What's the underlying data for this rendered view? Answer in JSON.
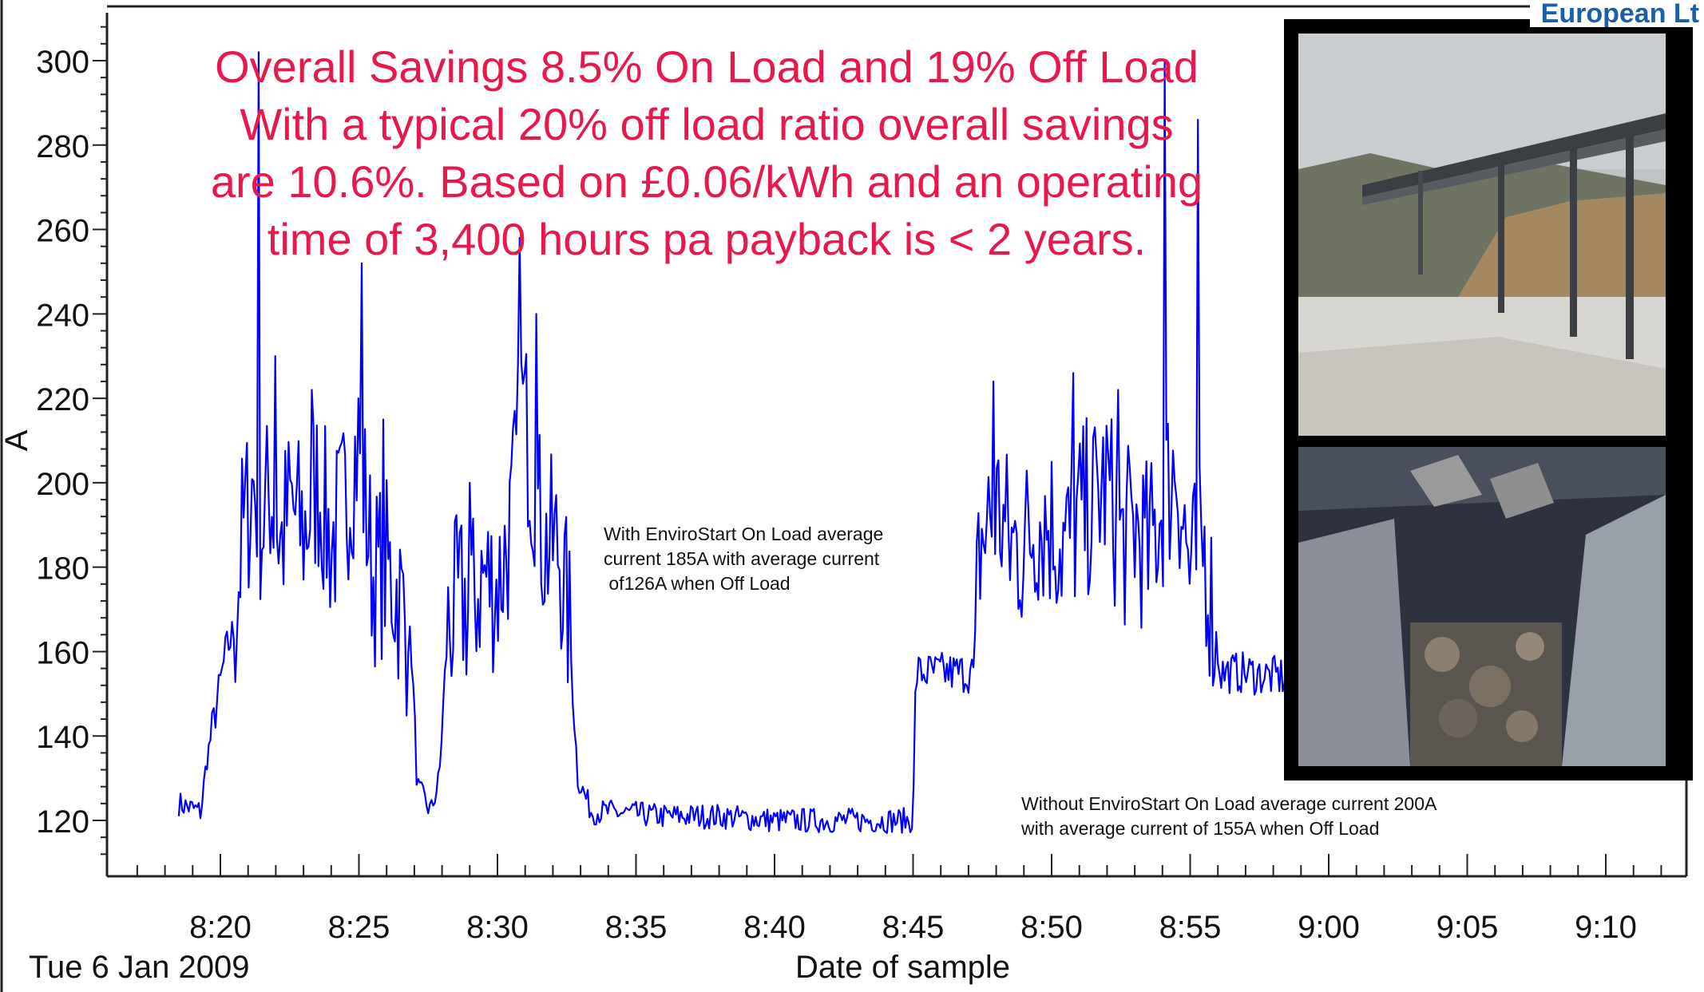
{
  "brand_text": "European Lt",
  "headline": {
    "line1": "Overall Savings 8.5% On Load and 19% Off Load",
    "line2": "With a typical 20% off load ratio overall savings",
    "line3": "are 10.6%. Based on £0.06/kWh and an operating",
    "line4": "time of 3,400 hours pa payback is < 2 years."
  },
  "annotations": {
    "with_envirostart": "With EnviroStart On Load average\ncurrent 185A with average current\n of126A when Off Load",
    "without_envirostart": "Without EnviroStart On Load average current 200A\nwith average current of 155A when Off Load"
  },
  "date_label": "Tue 6 Jan 2009",
  "colors": {
    "line": "#0000ff",
    "headline": "#e8194a",
    "axis": "#222222",
    "brand": "#1a5fa8"
  },
  "photos": [
    {
      "name": "conveyor-photo",
      "description_icon": "conveyor-bridge-photo"
    },
    {
      "name": "crusher-photo",
      "description_icon": "rock-chute-photo"
    }
  ],
  "chart_data": {
    "type": "line",
    "title": "",
    "xlabel": "Date of sample",
    "ylabel": "A",
    "ylim": [
      110,
      310
    ],
    "xlim": [
      "8:16",
      "9:13"
    ],
    "grid": false,
    "y_ticks": [
      120,
      140,
      160,
      180,
      200,
      220,
      240,
      260,
      280,
      300
    ],
    "x_ticks": [
      "8:20",
      "8:25",
      "8:30",
      "8:35",
      "8:40",
      "8:45",
      "8:50",
      "8:55",
      "9:00",
      "9:05",
      "9:10"
    ],
    "series": [
      {
        "name": "",
        "points": [
          [
            "8:18.5",
            124
          ],
          [
            "8:19.3",
            122
          ],
          [
            "8:19.5",
            134
          ],
          [
            "8:19.8",
            145
          ],
          [
            "8:20.2",
            160
          ],
          [
            "8:20.5",
            165
          ],
          [
            "8:20.8",
            188
          ],
          [
            "8:21.2",
            200
          ],
          [
            "8:21.5",
            190
          ],
          [
            "8:21.8",
            198
          ],
          [
            "8:22.2",
            185
          ],
          [
            "8:22.5",
            195
          ],
          [
            "8:23.0",
            188
          ],
          [
            "8:23.5",
            200
          ],
          [
            "8:24.0",
            185
          ],
          [
            "8:24.5",
            195
          ],
          [
            "8:25.0",
            210
          ],
          [
            "8:25.5",
            178
          ],
          [
            "8:26.0",
            180
          ],
          [
            "8:26.5",
            172
          ],
          [
            "8:26.9",
            160
          ],
          [
            "8:27.1",
            128
          ],
          [
            "8:27.6",
            122
          ],
          [
            "8:27.9",
            130
          ],
          [
            "8:28.2",
            165
          ],
          [
            "8:28.6",
            172
          ],
          [
            "8:29.0",
            170
          ],
          [
            "8:29.5",
            178
          ],
          [
            "8:30.0",
            175
          ],
          [
            "8:30.5",
            190
          ],
          [
            "8:30.9",
            220
          ],
          [
            "8:31.3",
            200
          ],
          [
            "8:31.7",
            185
          ],
          [
            "8:32.2",
            185
          ],
          [
            "8:32.6",
            165
          ],
          [
            "8:32.9",
            130
          ],
          [
            "8:33.4",
            122
          ],
          [
            "8:34.0",
            122
          ],
          [
            "8:36.0",
            121
          ],
          [
            "8:38.0",
            121
          ],
          [
            "8:40.0",
            120
          ],
          [
            "8:42.0",
            120
          ],
          [
            "8:44.0",
            120
          ],
          [
            "8:45.0",
            120
          ],
          [
            "8:45.1",
            155
          ],
          [
            "8:46.0",
            155
          ],
          [
            "8:47.2",
            155
          ],
          [
            "8:47.4",
            185
          ],
          [
            "8:48.0",
            195
          ],
          [
            "8:48.5",
            185
          ],
          [
            "8:49.0",
            185
          ],
          [
            "8:49.5",
            192
          ],
          [
            "8:50.0",
            190
          ],
          [
            "8:50.5",
            185
          ],
          [
            "8:51.0",
            192
          ],
          [
            "8:51.5",
            195
          ],
          [
            "8:52.0",
            200
          ],
          [
            "8:52.5",
            185
          ],
          [
            "8:53.0",
            190
          ],
          [
            "8:53.5",
            183
          ],
          [
            "8:54.0",
            195
          ],
          [
            "8:54.5",
            205
          ],
          [
            "8:55.0",
            178
          ],
          [
            "8:55.5",
            185
          ],
          [
            "8:55.9",
            165
          ],
          [
            "8:56.1",
            155
          ],
          [
            "8:57.0",
            155
          ],
          [
            "8:58.0",
            154
          ],
          [
            "8:58.5",
            154
          ]
        ],
        "peaks": [
          [
            "8:21.4",
            302
          ],
          [
            "8:22.0",
            230
          ],
          [
            "8:23.3",
            222
          ],
          [
            "8:25.1",
            252
          ],
          [
            "8:25.9",
            215
          ],
          [
            "8:29.0",
            200
          ],
          [
            "8:30.8",
            258
          ],
          [
            "8:31.4",
            240
          ],
          [
            "8:47.9",
            224
          ],
          [
            "8:50.8",
            226
          ],
          [
            "8:54.1",
            300
          ],
          [
            "8:55.3",
            286
          ],
          [
            "8:52.4",
            222
          ]
        ]
      }
    ],
    "annotations": [
      "With EnviroStart On Load average current 185A with average current of126A when Off Load",
      "Without EnviroStart On Load average current 200A with average current of 155A when Off Load"
    ]
  }
}
